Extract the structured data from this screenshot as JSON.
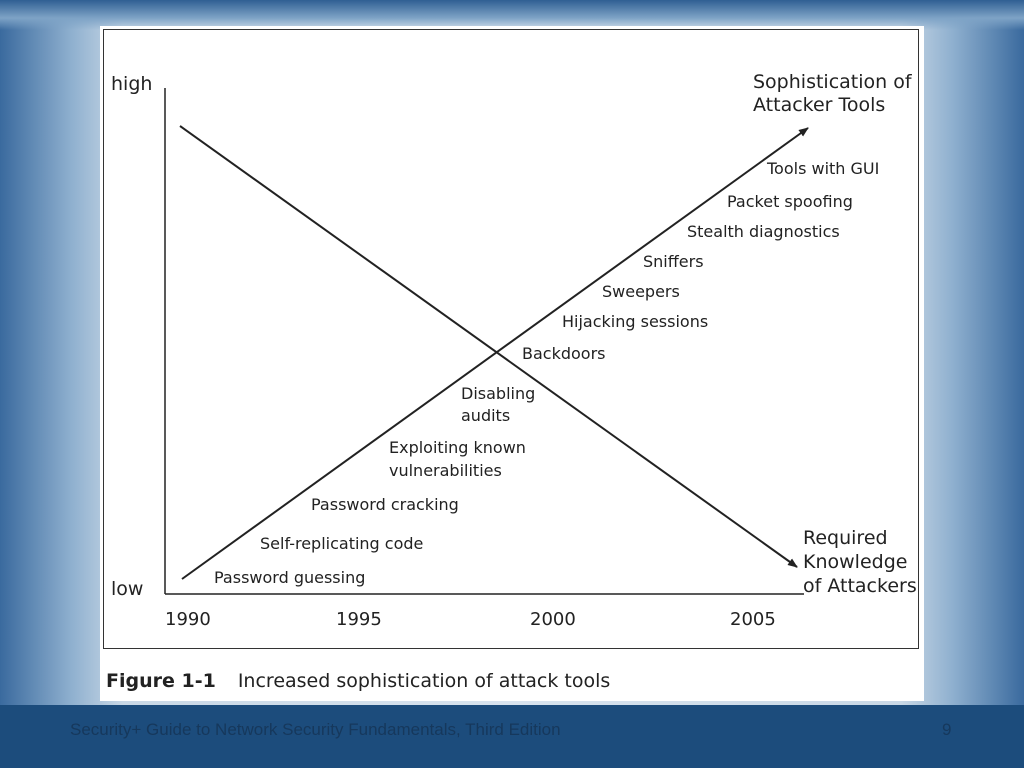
{
  "figure": {
    "y_axis": {
      "high_label": "high",
      "low_label": "low"
    },
    "x_axis": {
      "ticks": [
        "1990",
        "1995",
        "2000",
        "2005"
      ]
    },
    "lines": {
      "rising": {
        "label_line1": "Sophistication of",
        "label_line2": "Attacker Tools"
      },
      "falling": {
        "label_line1": "Required",
        "label_line2": "Knowledge",
        "label_line3": "of Attackers"
      }
    },
    "items": [
      {
        "line1": "Tools with GUI",
        "line2": ""
      },
      {
        "line1": "Packet spoofing",
        "line2": ""
      },
      {
        "line1": "Stealth diagnostics",
        "line2": ""
      },
      {
        "line1": "Sniffers",
        "line2": ""
      },
      {
        "line1": "Sweepers",
        "line2": ""
      },
      {
        "line1": "Hijacking sessions",
        "line2": ""
      },
      {
        "line1": "Backdoors",
        "line2": ""
      },
      {
        "line1": "Disabling",
        "line2": "audits"
      },
      {
        "line1": "Exploiting known",
        "line2": "vulnerabilities"
      },
      {
        "line1": "Password cracking",
        "line2": ""
      },
      {
        "line1": "Self-replicating code",
        "line2": ""
      },
      {
        "line1": "Password guessing",
        "line2": ""
      }
    ],
    "caption": {
      "number": "Figure 1-1",
      "text": "Increased sophistication of attack tools"
    }
  },
  "footer": {
    "title": "Security+ Guide to Network Security Fundamentals, Third Edition",
    "page": "9"
  }
}
